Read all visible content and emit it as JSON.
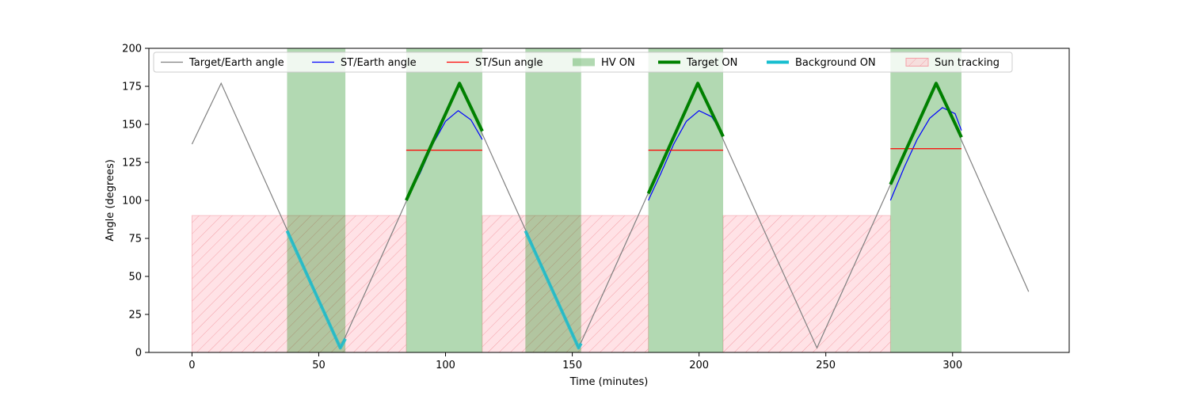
{
  "chart_data": {
    "type": "line",
    "xlabel": "Time (minutes)",
    "ylabel": "Angle (degrees)",
    "xlim": [
      -17,
      346
    ],
    "ylim": [
      0,
      200
    ],
    "xticks": [
      0,
      50,
      100,
      150,
      200,
      250,
      300
    ],
    "yticks": [
      0,
      25,
      50,
      75,
      100,
      125,
      150,
      175,
      200
    ],
    "grid": false,
    "legend_position": "top",
    "colors": {
      "target_earth": "#808080",
      "st_earth": "#0000ff",
      "st_sun": "#ff0000",
      "hv_on": "#008000",
      "target_on": "#008000",
      "background_on": "#17becf",
      "sun_tracking": "#ffb6c1"
    },
    "legend": [
      {
        "key": "target_earth",
        "label": "Target/Earth angle",
        "kind": "line"
      },
      {
        "key": "st_earth",
        "label": "ST/Earth angle",
        "kind": "line"
      },
      {
        "key": "st_sun",
        "label": "ST/Sun angle",
        "kind": "line"
      },
      {
        "key": "hv_on",
        "label": "HV ON",
        "kind": "patch"
      },
      {
        "key": "target_on",
        "label": "Target ON",
        "kind": "thick"
      },
      {
        "key": "background_on",
        "label": "Background ON",
        "kind": "thick"
      },
      {
        "key": "sun_tracking",
        "label": "Sun tracking",
        "kind": "hatch"
      }
    ],
    "series": [
      {
        "name": "Target/Earth angle",
        "key": "target_earth",
        "x": [
          0,
          11.5,
          58.5,
          105.5,
          152.5,
          199.5,
          246.5,
          293.5,
          330
        ],
        "y": [
          137,
          177,
          3,
          177,
          3,
          177,
          3,
          177,
          40
        ]
      },
      {
        "name": "ST/Earth angle",
        "key": "st_earth",
        "segments": [
          {
            "x": [
              84.5,
              90,
              95,
              100,
              105,
              110,
              114.5
            ],
            "y": [
              100,
              118,
              137,
              152,
              159,
              153,
              140
            ]
          },
          {
            "x": [
              180,
              185,
              190,
              195,
              200,
              205,
              209.5
            ],
            "y": [
              100,
              118,
              137,
              152,
              159,
              155,
              143
            ]
          },
          {
            "x": [
              275.5,
              281,
              286,
              291,
              296,
              301,
              303.5
            ],
            "y": [
              100,
              122,
              140,
              154,
              161,
              157,
              146
            ]
          }
        ]
      },
      {
        "name": "ST/Sun angle",
        "key": "st_sun",
        "segments": [
          {
            "x": [
              84.5,
              114.5
            ],
            "y": [
              133,
              133
            ]
          },
          {
            "x": [
              180,
              209.5
            ],
            "y": [
              133,
              133
            ]
          },
          {
            "x": [
              275.5,
              303.5
            ],
            "y": [
              134,
              134
            ]
          }
        ]
      },
      {
        "name": "Target ON",
        "key": "target_on",
        "segments": [
          {
            "x": [
              84.5,
              105.5,
              114.5
            ],
            "y": [
              100,
              177,
              145.5
            ]
          },
          {
            "x": [
              180,
              199.5,
              209.5
            ],
            "y": [
              104.5,
              177,
              142
            ]
          },
          {
            "x": [
              275.5,
              293.5,
              303.5
            ],
            "y": [
              110.5,
              177,
              141.5
            ]
          }
        ]
      },
      {
        "name": "Background ON",
        "key": "background_on",
        "segments": [
          {
            "x": [
              37.5,
              58.5,
              60.5
            ],
            "y": [
              80,
              3,
              9
            ]
          },
          {
            "x": [
              131.5,
              152.5,
              153.5
            ],
            "y": [
              80,
              3,
              6
            ]
          }
        ]
      }
    ],
    "hv_on_intervals": [
      [
        37.5,
        60.5
      ],
      [
        84.5,
        114.5
      ],
      [
        131.5,
        153.5
      ],
      [
        180,
        209.5
      ],
      [
        275.5,
        303.5
      ]
    ],
    "sun_tracking": {
      "y_range": [
        0,
        90
      ],
      "intervals": [
        [
          0,
          84.5
        ],
        [
          114.5,
          180
        ],
        [
          209.5,
          275.5
        ]
      ]
    }
  }
}
